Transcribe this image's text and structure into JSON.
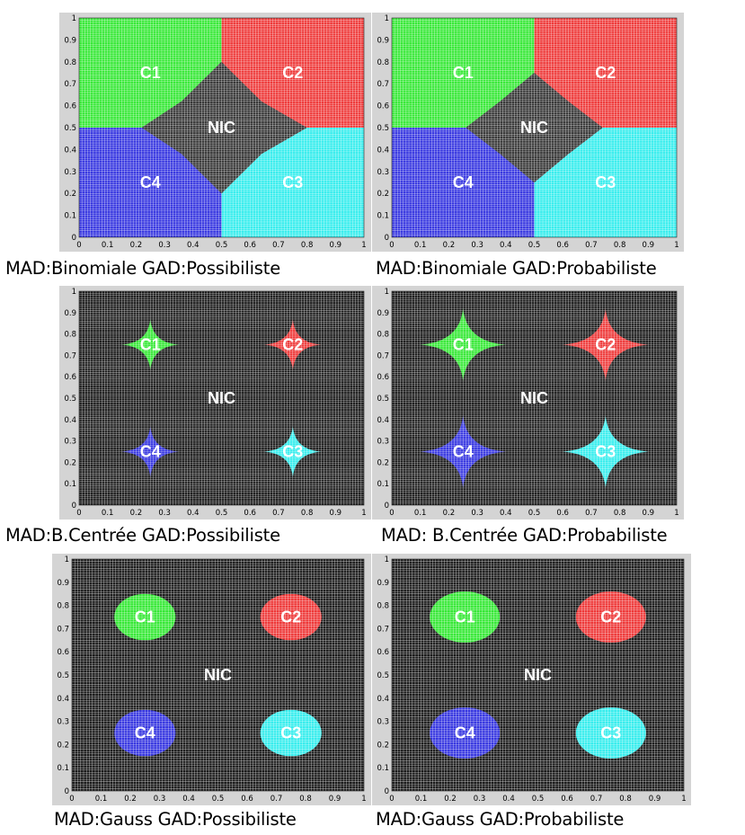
{
  "chart_data": [
    {
      "type": "heatmap",
      "caption": "MAD:Binomiale GAD:Possibiliste",
      "model": "partition",
      "xlim": [
        0,
        1
      ],
      "ylim": [
        0,
        1
      ],
      "xticks": [
        "0",
        "0.1",
        "0.2",
        "0.3",
        "0.4",
        "0.5",
        "0.6",
        "0.7",
        "0.8",
        "0.9",
        "1"
      ],
      "yticks": [
        "0",
        "0.1",
        "0.2",
        "0.3",
        "0.4",
        "0.5",
        "0.6",
        "0.7",
        "0.8",
        "0.9",
        "1"
      ],
      "regions": [
        {
          "label": "C1",
          "color": "#33e833",
          "polygon": [
            [
              0,
              1
            ],
            [
              0.5,
              1
            ],
            [
              0.5,
              0.8
            ],
            [
              0.36,
              0.62
            ],
            [
              0.22,
              0.5
            ],
            [
              0,
              0.5
            ]
          ]
        },
        {
          "label": "C2",
          "color": "#ee3636",
          "polygon": [
            [
              0.5,
              1
            ],
            [
              1,
              1
            ],
            [
              1,
              0.5
            ],
            [
              0.8,
              0.5
            ],
            [
              0.64,
              0.38
            ],
            [
              0.5,
              0.2
            ]
          ]
        },
        {
          "label": "C3",
          "color": "#33eded",
          "polygon": [
            [
              1,
              0
            ],
            [
              0.5,
              0
            ],
            [
              0.5,
              0.2
            ],
            [
              0.64,
              0.38
            ],
            [
              0.8,
              0.5
            ],
            [
              1,
              0.5
            ]
          ]
        },
        {
          "label": "C4",
          "color": "#3333e0",
          "polygon": [
            [
              0,
              0
            ],
            [
              0.5,
              0
            ],
            [
              0.5,
              0.2
            ],
            [
              0.36,
              0.38
            ],
            [
              0.22,
              0.5
            ],
            [
              0,
              0.5
            ]
          ]
        },
        {
          "label": "NIC",
          "color": "#333333",
          "polygon": [
            [
              0.22,
              0.5
            ],
            [
              0.36,
              0.62
            ],
            [
              0.5,
              0.8
            ],
            [
              0.64,
              0.62
            ],
            [
              0.8,
              0.5
            ],
            [
              0.64,
              0.38
            ],
            [
              0.5,
              0.2
            ],
            [
              0.36,
              0.38
            ]
          ]
        }
      ],
      "labels": [
        {
          "text": "C1",
          "x": 0.25,
          "y": 0.75
        },
        {
          "text": "C2",
          "x": 0.75,
          "y": 0.75
        },
        {
          "text": "C3",
          "x": 0.75,
          "y": 0.25
        },
        {
          "text": "C4",
          "x": 0.25,
          "y": 0.25
        },
        {
          "text": "NIC",
          "x": 0.5,
          "y": 0.5
        }
      ]
    },
    {
      "type": "heatmap",
      "caption": "MAD:Binomiale GAD:Probabiliste",
      "model": "partition",
      "xlim": [
        0,
        1
      ],
      "ylim": [
        0,
        1
      ],
      "xticks": [
        "0",
        "0.1",
        "0.2",
        "0.3",
        "0.4",
        "0.5",
        "0.6",
        "0.7",
        "0.8",
        "0.9",
        "1"
      ],
      "yticks": [
        "0",
        "0.1",
        "0.2",
        "0.3",
        "0.4",
        "0.5",
        "0.6",
        "0.7",
        "0.8",
        "0.9",
        "1"
      ],
      "regions": [
        {
          "label": "C1",
          "color": "#33e833",
          "polygon": [
            [
              0,
              1
            ],
            [
              0.5,
              1
            ],
            [
              0.5,
              0.75
            ],
            [
              0.38,
              0.62
            ],
            [
              0.26,
              0.5
            ],
            [
              0,
              0.5
            ]
          ]
        },
        {
          "label": "C2",
          "color": "#ee3636",
          "polygon": [
            [
              0.5,
              1
            ],
            [
              1,
              1
            ],
            [
              1,
              0.5
            ],
            [
              0.74,
              0.5
            ],
            [
              0.62,
              0.38
            ],
            [
              0.5,
              0.25
            ]
          ]
        },
        {
          "label": "C3",
          "color": "#33eded",
          "polygon": [
            [
              1,
              0
            ],
            [
              0.5,
              0
            ],
            [
              0.5,
              0.25
            ],
            [
              0.62,
              0.38
            ],
            [
              0.74,
              0.5
            ],
            [
              1,
              0.5
            ]
          ]
        },
        {
          "label": "C4",
          "color": "#3333e0",
          "polygon": [
            [
              0,
              0
            ],
            [
              0.5,
              0
            ],
            [
              0.5,
              0.25
            ],
            [
              0.38,
              0.38
            ],
            [
              0.26,
              0.5
            ],
            [
              0,
              0.5
            ]
          ]
        },
        {
          "label": "NIC",
          "color": "#333333",
          "polygon": [
            [
              0.26,
              0.5
            ],
            [
              0.38,
              0.62
            ],
            [
              0.5,
              0.75
            ],
            [
              0.62,
              0.62
            ],
            [
              0.74,
              0.5
            ],
            [
              0.62,
              0.38
            ],
            [
              0.5,
              0.25
            ],
            [
              0.38,
              0.38
            ]
          ]
        }
      ],
      "labels": [
        {
          "text": "C1",
          "x": 0.25,
          "y": 0.75
        },
        {
          "text": "C2",
          "x": 0.75,
          "y": 0.75
        },
        {
          "text": "C3",
          "x": 0.75,
          "y": 0.25
        },
        {
          "text": "C4",
          "x": 0.25,
          "y": 0.25
        },
        {
          "text": "NIC",
          "x": 0.5,
          "y": 0.5
        }
      ]
    },
    {
      "type": "heatmap",
      "caption": "MAD:B.Centrée GAD:Possibiliste",
      "model": "star",
      "background": "#1a1a1a",
      "xlim": [
        0,
        1
      ],
      "ylim": [
        0,
        1
      ],
      "xticks": [
        "0",
        "0.1",
        "0.2",
        "0.3",
        "0.4",
        "0.5",
        "0.6",
        "0.7",
        "0.8",
        "0.9",
        "1"
      ],
      "yticks": [
        "0",
        "0.1",
        "0.2",
        "0.3",
        "0.4",
        "0.5",
        "0.6",
        "0.7",
        "0.8",
        "0.9",
        "1"
      ],
      "regions": [
        {
          "label": "C1",
          "color": "#33e833",
          "cx": 0.25,
          "cy": 0.75,
          "rx": 0.1,
          "ry": 0.12,
          "inner": 0.025
        },
        {
          "label": "C2",
          "color": "#ee3636",
          "cx": 0.75,
          "cy": 0.75,
          "rx": 0.1,
          "ry": 0.12,
          "inner": 0.025
        },
        {
          "label": "C3",
          "color": "#33eded",
          "cx": 0.75,
          "cy": 0.25,
          "rx": 0.1,
          "ry": 0.12,
          "inner": 0.025
        },
        {
          "label": "C4",
          "color": "#3333e0",
          "cx": 0.25,
          "cy": 0.25,
          "rx": 0.1,
          "ry": 0.12,
          "inner": 0.025
        }
      ],
      "labels": [
        {
          "text": "C1",
          "x": 0.25,
          "y": 0.75
        },
        {
          "text": "C2",
          "x": 0.75,
          "y": 0.75
        },
        {
          "text": "C3",
          "x": 0.75,
          "y": 0.25
        },
        {
          "text": "C4",
          "x": 0.25,
          "y": 0.25
        },
        {
          "text": "NIC",
          "x": 0.5,
          "y": 0.5
        }
      ]
    },
    {
      "type": "heatmap",
      "caption": "MAD: B.Centrée GAD:Probabiliste",
      "model": "star",
      "background": "#1a1a1a",
      "xlim": [
        0,
        1
      ],
      "ylim": [
        0,
        1
      ],
      "xticks": [
        "0",
        "0.1",
        "0.2",
        "0.3",
        "0.4",
        "0.5",
        "0.6",
        "0.7",
        "0.8",
        "0.9",
        "1"
      ],
      "yticks": [
        "0",
        "0.1",
        "0.2",
        "0.3",
        "0.4",
        "0.5",
        "0.6",
        "0.7",
        "0.8",
        "0.9",
        "1"
      ],
      "regions": [
        {
          "label": "C1",
          "color": "#33e833",
          "cx": 0.25,
          "cy": 0.75,
          "rx": 0.15,
          "ry": 0.17,
          "inner": 0.035
        },
        {
          "label": "C2",
          "color": "#ee3636",
          "cx": 0.75,
          "cy": 0.75,
          "rx": 0.15,
          "ry": 0.17,
          "inner": 0.035
        },
        {
          "label": "C3",
          "color": "#33eded",
          "cx": 0.75,
          "cy": 0.25,
          "rx": 0.15,
          "ry": 0.17,
          "inner": 0.035
        },
        {
          "label": "C4",
          "color": "#3333e0",
          "cx": 0.25,
          "cy": 0.25,
          "rx": 0.15,
          "ry": 0.17,
          "inner": 0.035
        }
      ],
      "labels": [
        {
          "text": "C1",
          "x": 0.25,
          "y": 0.75
        },
        {
          "text": "C2",
          "x": 0.75,
          "y": 0.75
        },
        {
          "text": "C3",
          "x": 0.75,
          "y": 0.25
        },
        {
          "text": "C4",
          "x": 0.25,
          "y": 0.25
        },
        {
          "text": "NIC",
          "x": 0.5,
          "y": 0.5
        }
      ]
    },
    {
      "type": "heatmap",
      "caption": "MAD:Gauss GAD:Possibiliste",
      "model": "ellipse",
      "background": "#1a1a1a",
      "xlim": [
        0,
        1
      ],
      "ylim": [
        0,
        1
      ],
      "xticks": [
        "0",
        "0.1",
        "0.2",
        "0.3",
        "0.4",
        "0.5",
        "0.6",
        "0.7",
        "0.8",
        "0.9",
        "1"
      ],
      "yticks": [
        "0",
        "0.1",
        "0.2",
        "0.3",
        "0.4",
        "0.5",
        "0.6",
        "0.7",
        "0.8",
        "0.9",
        "1"
      ],
      "regions": [
        {
          "label": "C1",
          "color": "#33e833",
          "cx": 0.25,
          "cy": 0.75,
          "rx": 0.105,
          "ry": 0.1
        },
        {
          "label": "C2",
          "color": "#ee3636",
          "cx": 0.75,
          "cy": 0.75,
          "rx": 0.105,
          "ry": 0.1
        },
        {
          "label": "C3",
          "color": "#33eded",
          "cx": 0.75,
          "cy": 0.25,
          "rx": 0.105,
          "ry": 0.1
        },
        {
          "label": "C4",
          "color": "#3333e0",
          "cx": 0.25,
          "cy": 0.25,
          "rx": 0.105,
          "ry": 0.1
        }
      ],
      "labels": [
        {
          "text": "C1",
          "x": 0.25,
          "y": 0.75
        },
        {
          "text": "C2",
          "x": 0.75,
          "y": 0.75
        },
        {
          "text": "C3",
          "x": 0.75,
          "y": 0.25
        },
        {
          "text": "C4",
          "x": 0.25,
          "y": 0.25
        },
        {
          "text": "NIC",
          "x": 0.5,
          "y": 0.5
        }
      ]
    },
    {
      "type": "heatmap",
      "caption": "MAD:Gauss GAD:Probabiliste",
      "model": "ellipse",
      "background": "#1a1a1a",
      "xlim": [
        0,
        1
      ],
      "ylim": [
        0,
        1
      ],
      "xticks": [
        "0",
        "0.1",
        "0.2",
        "0.3",
        "0.4",
        "0.5",
        "0.6",
        "0.7",
        "0.8",
        "0.9",
        "1"
      ],
      "yticks": [
        "0",
        "0.1",
        "0.2",
        "0.3",
        "0.4",
        "0.5",
        "0.6",
        "0.7",
        "0.8",
        "0.9",
        "1"
      ],
      "regions": [
        {
          "label": "C1",
          "color": "#33e833",
          "cx": 0.25,
          "cy": 0.75,
          "rx": 0.12,
          "ry": 0.11
        },
        {
          "label": "C2",
          "color": "#ee3636",
          "cx": 0.75,
          "cy": 0.75,
          "rx": 0.12,
          "ry": 0.11
        },
        {
          "label": "C3",
          "color": "#33eded",
          "cx": 0.75,
          "cy": 0.25,
          "rx": 0.12,
          "ry": 0.11
        },
        {
          "label": "C4",
          "color": "#3333e0",
          "cx": 0.25,
          "cy": 0.25,
          "rx": 0.12,
          "ry": 0.11
        }
      ],
      "labels": [
        {
          "text": "C1",
          "x": 0.25,
          "y": 0.75
        },
        {
          "text": "C2",
          "x": 0.75,
          "y": 0.75
        },
        {
          "text": "C3",
          "x": 0.75,
          "y": 0.25
        },
        {
          "text": "C4",
          "x": 0.25,
          "y": 0.25
        },
        {
          "text": "NIC",
          "x": 0.5,
          "y": 0.5
        }
      ]
    }
  ]
}
